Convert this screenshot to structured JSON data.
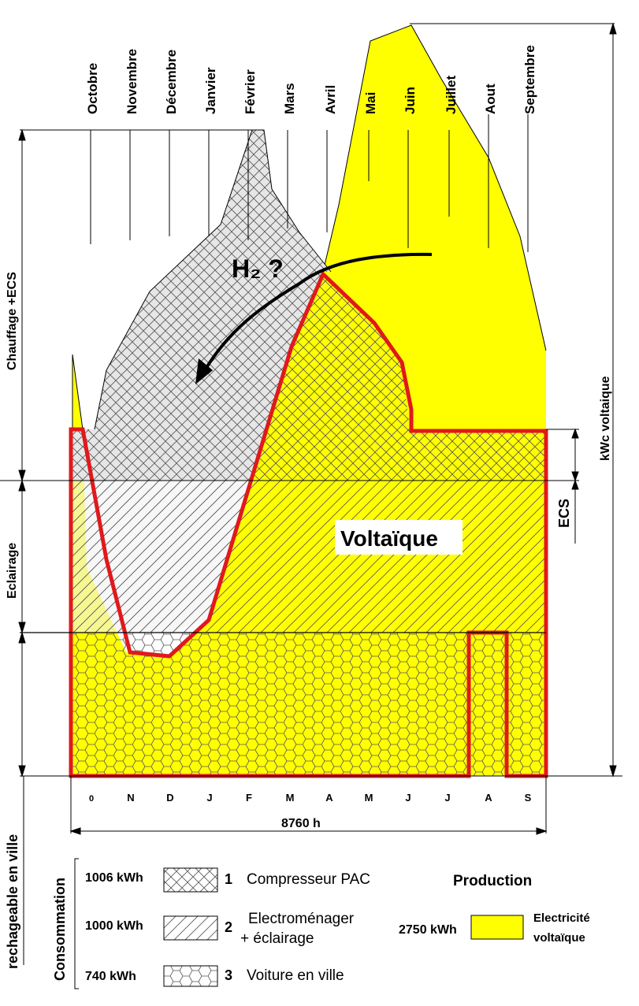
{
  "months_top": [
    "Octobre",
    "Novembre",
    "Décembre",
    "Janvier",
    "Février",
    "Mars",
    "Avril",
    "Mai",
    "Juin",
    "Juillet",
    "Aout",
    "Septembre"
  ],
  "months_bottom": [
    "0",
    "N",
    "D",
    "J",
    "F",
    "M",
    "A",
    "M",
    "J",
    "J",
    "A",
    "S"
  ],
  "axis": {
    "left_top": "Chauffage +ECS",
    "left_mid": "Eclairage",
    "left_bottom": "rechageable en ville",
    "right_top": "kWc  voltaique",
    "right_mid": "ECS",
    "hours": "8760 h"
  },
  "annotations": {
    "h2": "H₂ ?",
    "voltaique": "Voltaïque"
  },
  "legend": {
    "title": "Consommation",
    "items": [
      {
        "kwh": "1006 kWh",
        "num": "1",
        "label": "Compresseur PAC"
      },
      {
        "kwh": "1000 kWh",
        "num": "2",
        "label": "Electroménager",
        "label2": "+ éclairage"
      },
      {
        "kwh": "740 kWh",
        "num": "3",
        "label": "Voiture en ville"
      }
    ],
    "production_title": "Production",
    "production_kwh": "2750 kWh",
    "production_label": "Electricité",
    "production_label2": "voltaïque"
  },
  "colors": {
    "voltaic_fill": "#ffff00",
    "outline_red": "#e0191c",
    "hatch": "#555555"
  }
}
